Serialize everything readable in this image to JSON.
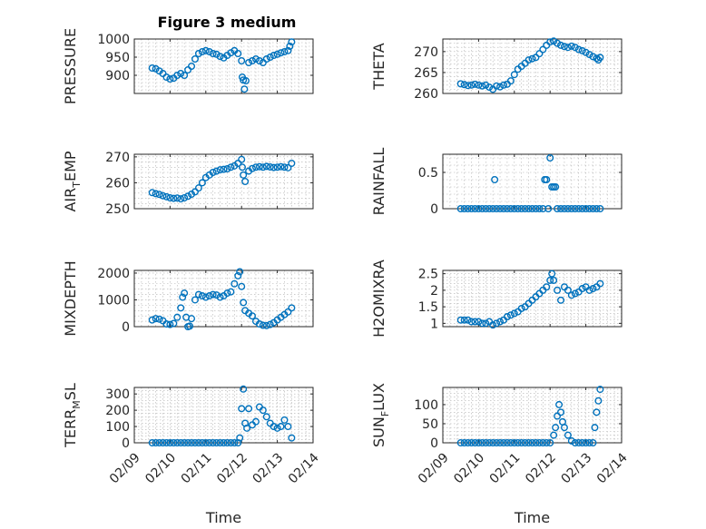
{
  "figure": {
    "title": "Figure 3 medium",
    "marker_color": "#0072BD"
  },
  "chart_data": [
    {
      "type": "scatter",
      "name": "pressure",
      "ylabel": "PRESSURE",
      "ylabel_sub": "",
      "ylabel_suffix": "",
      "title": "Figure 3 medium",
      "xlim": [
        0,
        5
      ],
      "ylim": [
        850,
        1000
      ],
      "yticks": [
        900,
        950,
        1000
      ],
      "x": [
        0.5,
        0.6,
        0.7,
        0.8,
        0.9,
        1.0,
        1.1,
        1.2,
        1.3,
        1.4,
        1.5,
        1.6,
        1.7,
        1.8,
        1.9,
        2.0,
        2.1,
        2.2,
        2.3,
        2.4,
        2.5,
        2.6,
        2.7,
        2.8,
        2.9,
        3.0,
        3.02,
        3.05,
        3.08,
        3.12,
        3.2,
        3.3,
        3.4,
        3.5,
        3.6,
        3.7,
        3.8,
        3.9,
        4.0,
        4.1,
        4.2,
        4.3,
        4.35,
        4.4
      ],
      "y": [
        920,
        918,
        912,
        905,
        895,
        890,
        892,
        900,
        905,
        900,
        915,
        925,
        945,
        960,
        965,
        968,
        965,
        960,
        958,
        952,
        948,
        955,
        962,
        968,
        960,
        940,
        895,
        887,
        862,
        885,
        935,
        940,
        945,
        940,
        935,
        945,
        950,
        955,
        958,
        962,
        965,
        968,
        980,
        992
      ],
      "xticks": [
        0,
        1,
        2,
        3,
        4,
        5
      ],
      "xticklabels": [],
      "xlabel": "",
      "grid": true
    },
    {
      "type": "scatter",
      "name": "theta",
      "ylabel": "THETA",
      "ylabel_sub": "",
      "ylabel_suffix": "",
      "xlim": [
        0,
        5
      ],
      "ylim": [
        260,
        273
      ],
      "yticks": [
        260,
        265,
        270
      ],
      "x": [
        0.5,
        0.6,
        0.7,
        0.8,
        0.9,
        1.0,
        1.1,
        1.2,
        1.3,
        1.4,
        1.5,
        1.6,
        1.7,
        1.8,
        1.9,
        2.0,
        2.1,
        2.2,
        2.3,
        2.4,
        2.5,
        2.6,
        2.7,
        2.8,
        2.9,
        3.0,
        3.1,
        3.2,
        3.3,
        3.4,
        3.5,
        3.6,
        3.7,
        3.8,
        3.9,
        4.0,
        4.1,
        4.2,
        4.3,
        4.35,
        4.4
      ],
      "y": [
        262.3,
        262.1,
        261.9,
        262.0,
        262.2,
        262.0,
        261.8,
        262.0,
        261.5,
        261.0,
        261.8,
        261.6,
        262.0,
        262.2,
        263.0,
        264.5,
        265.8,
        266.5,
        267.2,
        268.0,
        268.3,
        268.6,
        269.5,
        270.5,
        271.5,
        272.3,
        272.5,
        272.0,
        271.5,
        271.2,
        271.0,
        271.3,
        271.0,
        270.5,
        270.2,
        269.8,
        269.3,
        268.8,
        268.4,
        268.0,
        268.6
      ],
      "xticks": [
        0,
        1,
        2,
        3,
        4,
        5
      ],
      "xticklabels": [],
      "xlabel": "",
      "grid": true
    },
    {
      "type": "scatter",
      "name": "air-temp",
      "ylabel": "AIR",
      "ylabel_sub": "T",
      "ylabel_suffix": "EMP",
      "xlim": [
        0,
        5
      ],
      "ylim": [
        250,
        271
      ],
      "yticks": [
        250,
        260,
        270
      ],
      "x": [
        0.5,
        0.6,
        0.7,
        0.8,
        0.9,
        1.0,
        1.1,
        1.2,
        1.3,
        1.4,
        1.5,
        1.6,
        1.7,
        1.8,
        1.9,
        2.0,
        2.1,
        2.2,
        2.3,
        2.4,
        2.5,
        2.6,
        2.7,
        2.8,
        2.9,
        3.0,
        3.02,
        3.05,
        3.1,
        3.2,
        3.3,
        3.4,
        3.5,
        3.6,
        3.7,
        3.8,
        3.9,
        4.0,
        4.1,
        4.2,
        4.3,
        4.4
      ],
      "y": [
        256.2,
        255.8,
        255.5,
        255.0,
        254.6,
        254.2,
        254.0,
        254.1,
        253.8,
        254.2,
        254.8,
        255.6,
        256.5,
        258.0,
        260.0,
        262.0,
        263.0,
        264.0,
        264.5,
        265.0,
        265.2,
        265.4,
        266.0,
        266.5,
        267.5,
        269.0,
        266.0,
        263.0,
        260.5,
        264.5,
        265.5,
        266.0,
        266.2,
        266.0,
        266.3,
        266.1,
        265.9,
        266.0,
        266.2,
        266.0,
        265.8,
        267.5
      ],
      "xticks": [
        0,
        1,
        2,
        3,
        4,
        5
      ],
      "xticklabels": [],
      "xlabel": "",
      "grid": true
    },
    {
      "type": "scatter",
      "name": "rainfall",
      "ylabel": "RAINFALL",
      "ylabel_sub": "",
      "ylabel_suffix": "",
      "xlim": [
        0,
        5
      ],
      "ylim": [
        0,
        0.75
      ],
      "yticks": [
        0,
        0.5
      ],
      "x": [
        0.5,
        0.6,
        0.7,
        0.8,
        0.9,
        1.0,
        1.1,
        1.2,
        1.3,
        1.4,
        1.45,
        1.5,
        1.6,
        1.7,
        1.8,
        1.9,
        2.0,
        2.1,
        2.2,
        2.3,
        2.4,
        2.5,
        2.6,
        2.7,
        2.8,
        2.85,
        2.9,
        2.95,
        3.0,
        3.05,
        3.1,
        3.15,
        3.2,
        3.3,
        3.4,
        3.5,
        3.6,
        3.7,
        3.8,
        3.9,
        4.0,
        4.1,
        4.2,
        4.3,
        4.4
      ],
      "y": [
        0,
        0,
        0,
        0,
        0,
        0,
        0,
        0,
        0,
        0,
        0.4,
        0,
        0,
        0,
        0,
        0,
        0,
        0,
        0,
        0,
        0,
        0,
        0,
        0,
        0,
        0.4,
        0.4,
        0,
        0.7,
        0.3,
        0.3,
        0.3,
        0,
        0,
        0,
        0,
        0,
        0,
        0,
        0,
        0,
        0,
        0,
        0,
        0
      ],
      "xticks": [
        0,
        1,
        2,
        3,
        4,
        5
      ],
      "xticklabels": [],
      "xlabel": "",
      "grid": true
    },
    {
      "type": "scatter",
      "name": "mixdepth",
      "ylabel": "MIXDEPTH",
      "ylabel_sub": "",
      "ylabel_suffix": "",
      "xlim": [
        0,
        5
      ],
      "ylim": [
        0,
        2100
      ],
      "yticks": [
        0,
        1000,
        2000
      ],
      "x": [
        0.5,
        0.6,
        0.7,
        0.8,
        0.9,
        1.0,
        1.1,
        1.2,
        1.3,
        1.35,
        1.4,
        1.45,
        1.5,
        1.55,
        1.6,
        1.7,
        1.8,
        1.9,
        2.0,
        2.1,
        2.2,
        2.3,
        2.4,
        2.5,
        2.6,
        2.7,
        2.8,
        2.9,
        2.95,
        3.0,
        3.05,
        3.1,
        3.2,
        3.3,
        3.4,
        3.5,
        3.6,
        3.7,
        3.8,
        3.9,
        4.0,
        4.1,
        4.2,
        4.3,
        4.4
      ],
      "y": [
        250,
        300,
        280,
        220,
        100,
        80,
        120,
        350,
        700,
        1100,
        1250,
        350,
        0,
        20,
        300,
        1000,
        1200,
        1150,
        1100,
        1150,
        1200,
        1180,
        1100,
        1150,
        1250,
        1300,
        1600,
        1900,
        2050,
        1500,
        900,
        600,
        500,
        400,
        200,
        100,
        50,
        40,
        80,
        150,
        250,
        350,
        450,
        550,
        700
      ],
      "xticks": [
        0,
        1,
        2,
        3,
        4,
        5
      ],
      "xticklabels": [],
      "xlabel": "",
      "grid": true
    },
    {
      "type": "scatter",
      "name": "h2omixra",
      "ylabel": "H2OMIXRA",
      "ylabel_sub": "",
      "ylabel_suffix": "",
      "xlim": [
        0,
        5
      ],
      "ylim": [
        0.9,
        2.6
      ],
      "yticks": [
        1,
        1.5,
        2,
        2.5
      ],
      "x": [
        0.5,
        0.6,
        0.7,
        0.8,
        0.9,
        1.0,
        1.1,
        1.2,
        1.3,
        1.4,
        1.5,
        1.6,
        1.7,
        1.8,
        1.9,
        2.0,
        2.1,
        2.2,
        2.3,
        2.4,
        2.5,
        2.6,
        2.7,
        2.8,
        2.9,
        3.0,
        3.05,
        3.1,
        3.2,
        3.3,
        3.4,
        3.5,
        3.6,
        3.7,
        3.8,
        3.9,
        4.0,
        4.1,
        4.2,
        4.3,
        4.4
      ],
      "y": [
        1.1,
        1.1,
        1.1,
        1.05,
        1.05,
        1.05,
        1.0,
        1.0,
        1.05,
        0.95,
        1.0,
        1.05,
        1.1,
        1.2,
        1.25,
        1.3,
        1.35,
        1.45,
        1.5,
        1.6,
        1.7,
        1.8,
        1.9,
        2.0,
        2.1,
        2.3,
        2.5,
        2.3,
        2.0,
        1.7,
        2.1,
        2.0,
        1.85,
        1.9,
        1.95,
        2.05,
        2.1,
        2.0,
        2.05,
        2.1,
        2.2
      ],
      "xticks": [
        0,
        1,
        2,
        3,
        4,
        5
      ],
      "xticklabels": [],
      "xlabel": "",
      "grid": true
    },
    {
      "type": "scatter",
      "name": "terr-msl",
      "ylabel": "TERR",
      "ylabel_sub": "M",
      "ylabel_suffix": "SL",
      "xlim": [
        0,
        5
      ],
      "ylim": [
        0,
        340
      ],
      "yticks": [
        0,
        100,
        200,
        300
      ],
      "x": [
        0.5,
        0.6,
        0.7,
        0.8,
        0.9,
        1.0,
        1.1,
        1.2,
        1.3,
        1.4,
        1.5,
        1.6,
        1.7,
        1.8,
        1.9,
        2.0,
        2.1,
        2.2,
        2.3,
        2.4,
        2.5,
        2.6,
        2.7,
        2.8,
        2.9,
        2.95,
        3.0,
        3.05,
        3.1,
        3.15,
        3.2,
        3.3,
        3.4,
        3.5,
        3.6,
        3.7,
        3.8,
        3.9,
        4.0,
        4.1,
        4.2,
        4.3,
        4.4
      ],
      "y": [
        0,
        0,
        0,
        0,
        0,
        0,
        0,
        0,
        0,
        0,
        0,
        0,
        0,
        0,
        0,
        0,
        0,
        0,
        0,
        0,
        0,
        0,
        0,
        0,
        0,
        30,
        210,
        330,
        120,
        90,
        210,
        110,
        130,
        220,
        200,
        160,
        120,
        100,
        90,
        100,
        140,
        100,
        30
      ],
      "xticks": [
        0,
        1,
        2,
        3,
        4,
        5
      ],
      "xticklabels": [
        "02/09",
        "02/10",
        "02/11",
        "02/12",
        "02/13",
        "02/14"
      ],
      "xlabel": "Time",
      "grid": true
    },
    {
      "type": "scatter",
      "name": "sun-flux",
      "ylabel": "SUN",
      "ylabel_sub": "F",
      "ylabel_suffix": "LUX",
      "xlim": [
        0,
        5
      ],
      "ylim": [
        0,
        145
      ],
      "yticks": [
        0,
        50,
        100
      ],
      "x": [
        0.5,
        0.6,
        0.7,
        0.8,
        0.9,
        1.0,
        1.1,
        1.2,
        1.3,
        1.4,
        1.5,
        1.6,
        1.7,
        1.8,
        1.9,
        2.0,
        2.1,
        2.2,
        2.3,
        2.4,
        2.5,
        2.6,
        2.7,
        2.8,
        2.9,
        3.0,
        3.1,
        3.15,
        3.2,
        3.25,
        3.3,
        3.35,
        3.4,
        3.5,
        3.6,
        3.7,
        3.8,
        3.9,
        4.0,
        4.1,
        4.2,
        4.25,
        4.3,
        4.35,
        4.4
      ],
      "y": [
        0,
        0,
        0,
        0,
        0,
        0,
        0,
        0,
        0,
        0,
        0,
        0,
        0,
        0,
        0,
        0,
        0,
        0,
        0,
        0,
        0,
        0,
        0,
        0,
        0,
        0,
        20,
        40,
        70,
        100,
        80,
        55,
        40,
        20,
        5,
        0,
        0,
        0,
        0,
        0,
        0,
        40,
        80,
        110,
        140
      ],
      "xticks": [
        0,
        1,
        2,
        3,
        4,
        5
      ],
      "xticklabels": [
        "02/09",
        "02/10",
        "02/11",
        "02/12",
        "02/13",
        "02/14"
      ],
      "xlabel": "Time",
      "grid": true
    }
  ]
}
